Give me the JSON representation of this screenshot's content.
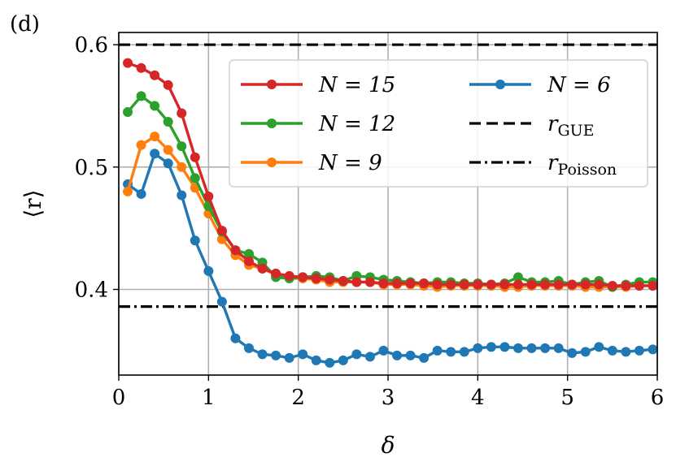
{
  "panel_label": "(d)",
  "chart_data": {
    "type": "line",
    "xlabel": "δ",
    "ylabel": "⟨r⟩",
    "xlim": [
      0,
      6
    ],
    "ylim": [
      0.33,
      0.61
    ],
    "xticks": [
      "0",
      "1",
      "2",
      "3",
      "4",
      "5",
      "6"
    ],
    "yticks": [
      "0.4",
      "0.5",
      "0.6"
    ],
    "grid": true,
    "legend_position": "top-right",
    "x": [
      0.1,
      0.25,
      0.4,
      0.55,
      0.7,
      0.85,
      1.0,
      1.15,
      1.3,
      1.45,
      1.6,
      1.75,
      1.9,
      2.05,
      2.2,
      2.35,
      2.5,
      2.65,
      2.8,
      2.95,
      3.1,
      3.25,
      3.4,
      3.55,
      3.7,
      3.85,
      4.0,
      4.15,
      4.3,
      4.45,
      4.6,
      4.75,
      4.9,
      5.05,
      5.2,
      5.35,
      5.5,
      5.65,
      5.8,
      5.95
    ],
    "series": [
      {
        "name_main": "N = 6",
        "color": "#1f77b4",
        "values": [
          0.486,
          0.478,
          0.511,
          0.503,
          0.477,
          0.44,
          0.415,
          0.39,
          0.36,
          0.352,
          0.347,
          0.346,
          0.344,
          0.347,
          0.342,
          0.34,
          0.342,
          0.347,
          0.345,
          0.35,
          0.346,
          0.346,
          0.344,
          0.35,
          0.349,
          0.349,
          0.352,
          0.353,
          0.353,
          0.352,
          0.352,
          0.352,
          0.352,
          0.348,
          0.349,
          0.353,
          0.35,
          0.349,
          0.35,
          0.351
        ]
      },
      {
        "name_main": "N = 9",
        "color": "#ff7f0e",
        "values": [
          0.48,
          0.518,
          0.525,
          0.514,
          0.5,
          0.483,
          0.462,
          0.441,
          0.428,
          0.42,
          0.417,
          0.412,
          0.409,
          0.409,
          0.408,
          0.406,
          0.406,
          0.406,
          0.406,
          0.404,
          0.404,
          0.404,
          0.403,
          0.402,
          0.403,
          0.403,
          0.403,
          0.403,
          0.402,
          0.402,
          0.403,
          0.403,
          0.403,
          0.403,
          0.402,
          0.402,
          0.402,
          0.402,
          0.403,
          0.403
        ]
      },
      {
        "name_main": "N = 12",
        "color": "#2ca02c",
        "values": [
          0.545,
          0.558,
          0.55,
          0.537,
          0.517,
          0.491,
          0.468,
          0.447,
          0.432,
          0.429,
          0.422,
          0.41,
          0.409,
          0.41,
          0.411,
          0.41,
          0.407,
          0.411,
          0.41,
          0.408,
          0.407,
          0.406,
          0.405,
          0.406,
          0.406,
          0.405,
          0.405,
          0.404,
          0.405,
          0.41,
          0.406,
          0.406,
          0.407,
          0.404,
          0.406,
          0.407,
          0.402,
          0.404,
          0.406,
          0.406
        ]
      },
      {
        "name_main": "N = 15",
        "color": "#d62728",
        "values": [
          0.585,
          0.581,
          0.575,
          0.567,
          0.544,
          0.508,
          0.476,
          0.448,
          0.432,
          0.423,
          0.417,
          0.413,
          0.411,
          0.41,
          0.409,
          0.408,
          0.407,
          0.406,
          0.406,
          0.405,
          0.405,
          0.405,
          0.405,
          0.404,
          0.404,
          0.404,
          0.404,
          0.404,
          0.404,
          0.404,
          0.404,
          0.404,
          0.404,
          0.404,
          0.404,
          0.404,
          0.403,
          0.403,
          0.403,
          0.403
        ]
      }
    ],
    "reference_lines": [
      {
        "label_main": "r",
        "label_sub": "GUE",
        "value": 0.6,
        "style": "dashed",
        "color": "#000000"
      },
      {
        "label_main": "r",
        "label_sub": "Poisson",
        "value": 0.386,
        "style": "dashdot",
        "color": "#000000"
      }
    ],
    "legend": [
      {
        "label": "N = 15",
        "color": "#d62728",
        "kind": "marker-line"
      },
      {
        "label": "N = 12",
        "color": "#2ca02c",
        "kind": "marker-line"
      },
      {
        "label": "N = 9",
        "color": "#ff7f0e",
        "kind": "marker-line"
      },
      {
        "label": "N = 6",
        "color": "#1f77b4",
        "kind": "marker-line"
      },
      {
        "label_main": "r",
        "label_sub": "GUE",
        "kind": "dashed"
      },
      {
        "label_main": "r",
        "label_sub": "Poisson",
        "kind": "dashdot"
      }
    ]
  }
}
